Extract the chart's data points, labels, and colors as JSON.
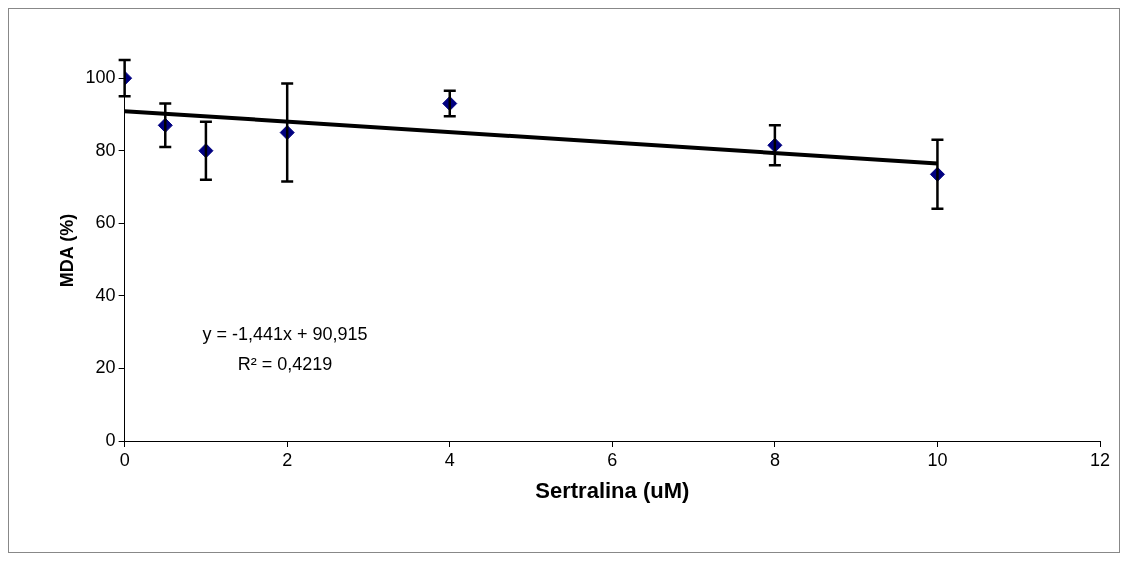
{
  "chart_data": {
    "type": "scatter",
    "xlabel": "Sertralina (uM)",
    "ylabel": "MDA (%)",
    "x": [
      0,
      0.5,
      1,
      2,
      4,
      8,
      10
    ],
    "series": [
      {
        "type": "scatter",
        "marker": "diamond",
        "color": "#000080",
        "values": [
          100,
          87,
          80,
          85,
          93,
          81.5,
          73.5
        ],
        "errors": [
          5,
          6,
          8,
          13.5,
          3.5,
          5.5,
          9.5
        ]
      },
      {
        "type": "line",
        "marker": "none",
        "color": "#000000",
        "x": [
          0,
          10
        ],
        "values": [
          90.9,
          76.5
        ]
      }
    ],
    "xlim": [
      0,
      12
    ],
    "xticks": [
      0,
      2,
      4,
      6,
      8,
      10,
      12
    ],
    "ylim": [
      0,
      105
    ],
    "yticks": [
      0,
      20,
      40,
      60,
      80,
      100
    ],
    "grid": false,
    "legend": false,
    "annotations": [
      "y = -1,441x + 90,915",
      "R² = 0,4219"
    ]
  }
}
